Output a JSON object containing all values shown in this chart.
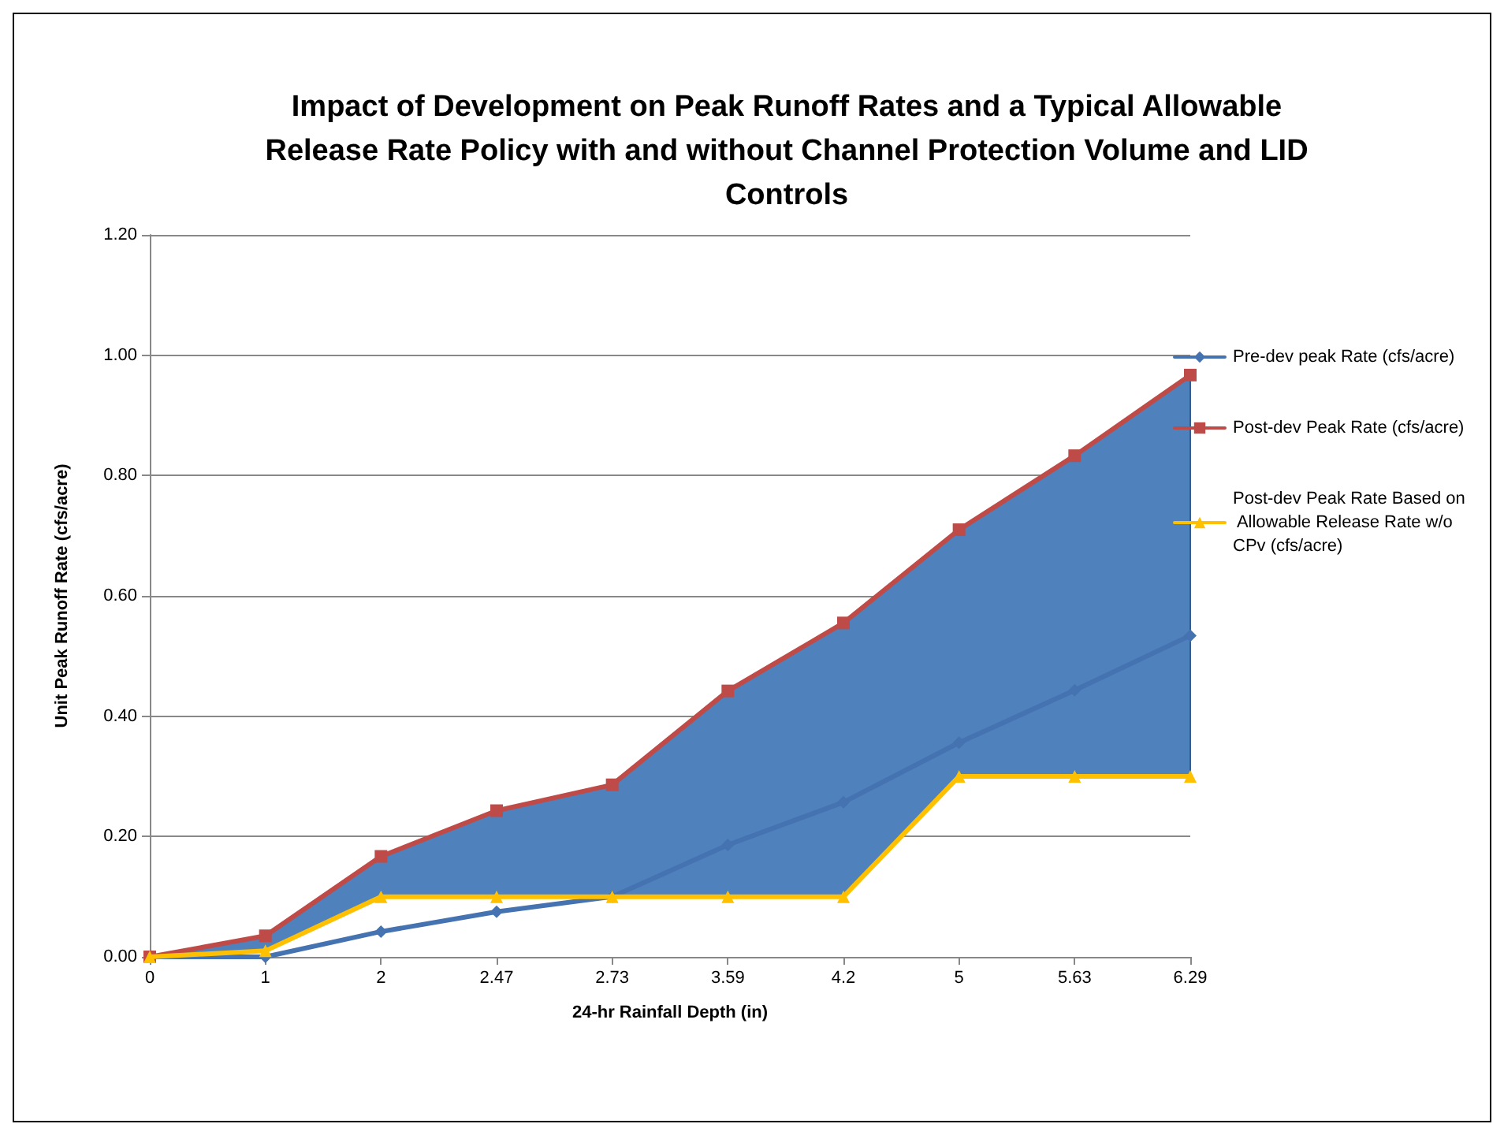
{
  "chart_data": {
    "type": "line",
    "title": "Impact of Development on Peak Runoff Rates and a Typical Allowable\nRelease Rate Policy with and without Channel Protection Volume and LID\nControls",
    "xlabel": "24-hr Rainfall Depth (in)",
    "ylabel": "Unit Peak Runoff Rate (cfs/acre)",
    "categories": [
      "0",
      "1",
      "2",
      "2.47",
      "2.73",
      "3.59",
      "4.2",
      "5",
      "5.63",
      "6.29"
    ],
    "series": [
      {
        "name": "Pre-dev peak Rate (cfs/acre)",
        "color": "#4572b0",
        "marker": "diamond",
        "values": [
          0,
          0,
          0.042,
          0.075,
          0.1,
          0.186,
          0.257,
          0.356,
          0.443,
          0.534
        ]
      },
      {
        "name": "Post-dev Peak Rate (cfs/acre)",
        "color": "#be4b48",
        "marker": "square",
        "values": [
          0,
          0.035,
          0.167,
          0.243,
          0.286,
          0.442,
          0.555,
          0.71,
          0.833,
          0.967
        ],
        "lower": [
          0,
          0.01,
          0.1,
          0.1,
          0.1,
          0.1,
          0.1,
          0.3,
          0.3,
          0.3
        ],
        "upper": [
          0,
          0.035,
          0.167,
          0.243,
          0.286,
          0.442,
          0.555,
          0.71,
          0.833,
          0.967
        ]
      },
      {
        "name": "Post-dev Peak Rate Based on Allowable Release Rate w/o CPv (cfs/acre)",
        "color": "#ffc000",
        "marker": "triangle",
        "values": [
          0,
          0.01,
          0.1,
          0.1,
          0.1,
          0.1,
          0.1,
          0.3,
          0.3,
          0.3
        ]
      }
    ],
    "ylim": [
      0,
      1.2
    ],
    "yticks": [
      {
        "value": 0,
        "label": "0.00"
      },
      {
        "value": 0.2,
        "label": "0.20"
      },
      {
        "value": 0.4,
        "label": "0.40"
      },
      {
        "value": 0.6,
        "label": "0.60"
      },
      {
        "value": 0.8,
        "label": "0.80"
      },
      {
        "value": 1,
        "label": "1.00"
      },
      {
        "value": 1.2,
        "label": "1.20"
      }
    ],
    "grid": "y",
    "legend": "right",
    "line_style": "solid"
  }
}
